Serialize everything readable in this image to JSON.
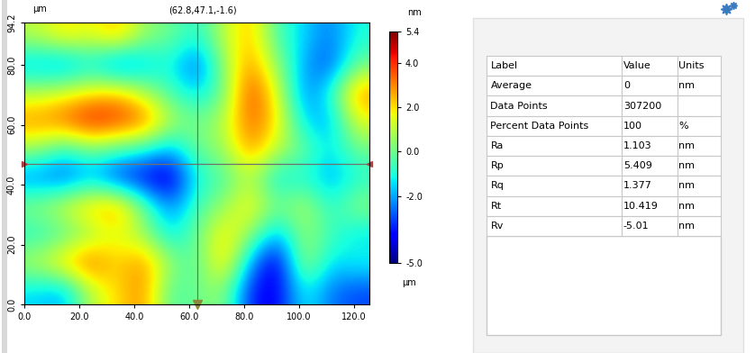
{
  "chart_data": {
    "type": "heatmap",
    "cursor_label": "(62.8,47.1,-1.6)",
    "cursor": {
      "x": 62.8,
      "y": 47.1
    },
    "xlabel": "µm",
    "ylabel": "µm",
    "xlim": [
      0,
      125.6
    ],
    "ylim": [
      0,
      94.2
    ],
    "xticks": [
      {
        "value": 0,
        "label": "0.0"
      },
      {
        "value": 20,
        "label": "20.0"
      },
      {
        "value": 40,
        "label": "40.0"
      },
      {
        "value": 60,
        "label": "60.0"
      },
      {
        "value": 80,
        "label": "80.0"
      },
      {
        "value": 100,
        "label": "100.0"
      },
      {
        "value": 120,
        "label": "120.0"
      }
    ],
    "yticks": [
      {
        "value": 0,
        "label": "0.0"
      },
      {
        "value": 20,
        "label": "20.0"
      },
      {
        "value": 40,
        "label": "40.0"
      },
      {
        "value": 60,
        "label": "60.0"
      },
      {
        "value": 80,
        "label": "80.0"
      },
      94.2
    ],
    "cells": [
      [
        -1.5,
        -2.0,
        1.0,
        2.0,
        3.0,
        -0.5,
        0.0,
        0.5,
        -3.5,
        -4.0,
        -1.0,
        -2.5,
        -3.0
      ],
      [
        1.0,
        2.5,
        3.5,
        2.0,
        3.0,
        0.5,
        -0.5,
        2.5,
        -2.0,
        -4.5,
        1.0,
        -1.5,
        -1.0
      ],
      [
        -1.0,
        -0.5,
        0.5,
        1.5,
        0.5,
        -1.5,
        0.0,
        2.0,
        0.5,
        -2.0,
        0.5,
        -0.5,
        -1.5
      ],
      [
        0.5,
        1.5,
        2.5,
        3.0,
        0.0,
        -2.5,
        -0.5,
        0.5,
        2.0,
        0.0,
        1.0,
        -1.0,
        0.5
      ],
      [
        -2.5,
        -3.0,
        -2.0,
        -3.5,
        -4.0,
        -4.5,
        -1.0,
        -0.5,
        1.0,
        -1.5,
        -1.0,
        -2.0,
        -1.0
      ],
      [
        0.5,
        -1.0,
        0.0,
        -0.5,
        -1.0,
        -2.0,
        0.0,
        0.5,
        3.0,
        1.0,
        0.0,
        -1.5,
        0.0
      ],
      [
        3.0,
        3.5,
        4.5,
        4.0,
        3.5,
        1.0,
        0.0,
        1.0,
        3.5,
        2.0,
        -1.5,
        -2.0,
        1.5
      ],
      [
        1.0,
        1.5,
        2.0,
        2.5,
        1.0,
        -0.5,
        -1.5,
        0.0,
        4.0,
        1.5,
        -2.5,
        -1.0,
        3.0
      ],
      [
        -2.0,
        -2.5,
        -1.5,
        -3.0,
        -2.0,
        -1.0,
        -3.0,
        0.5,
        3.0,
        0.5,
        -2.0,
        -3.0,
        0.0
      ],
      [
        1.0,
        2.0,
        1.5,
        2.5,
        0.5,
        0.0,
        -1.0,
        1.0,
        2.5,
        -0.5,
        -1.5,
        -2.5,
        -1.0
      ]
    ],
    "colorbar": {
      "label": "nm",
      "range": [
        -5.0,
        5.4
      ],
      "ticks": [
        5.4,
        {
          "value": 4.0,
          "label": "4.0"
        },
        {
          "value": 2.0,
          "label": "2.0"
        },
        {
          "value": 0.0,
          "label": "0.0"
        },
        {
          "value": -2.0,
          "label": "-2.0"
        },
        {
          "value": -5.0,
          "label": "-5.0"
        }
      ]
    }
  },
  "table": {
    "columns": [
      "Label",
      "Value",
      "Units"
    ],
    "rows": [
      [
        "Average",
        "0",
        "nm"
      ],
      [
        "Data Points",
        "307200",
        null
      ],
      [
        "Percent Data Points",
        "100",
        "%"
      ],
      [
        "Ra",
        "1.103",
        "nm"
      ],
      [
        "Rp",
        "5.409",
        "nm"
      ],
      [
        "Rq",
        "1.377",
        "nm"
      ],
      [
        "Rt",
        "10.419",
        "nm"
      ],
      [
        "Rv",
        "-5.01",
        "nm"
      ]
    ]
  }
}
